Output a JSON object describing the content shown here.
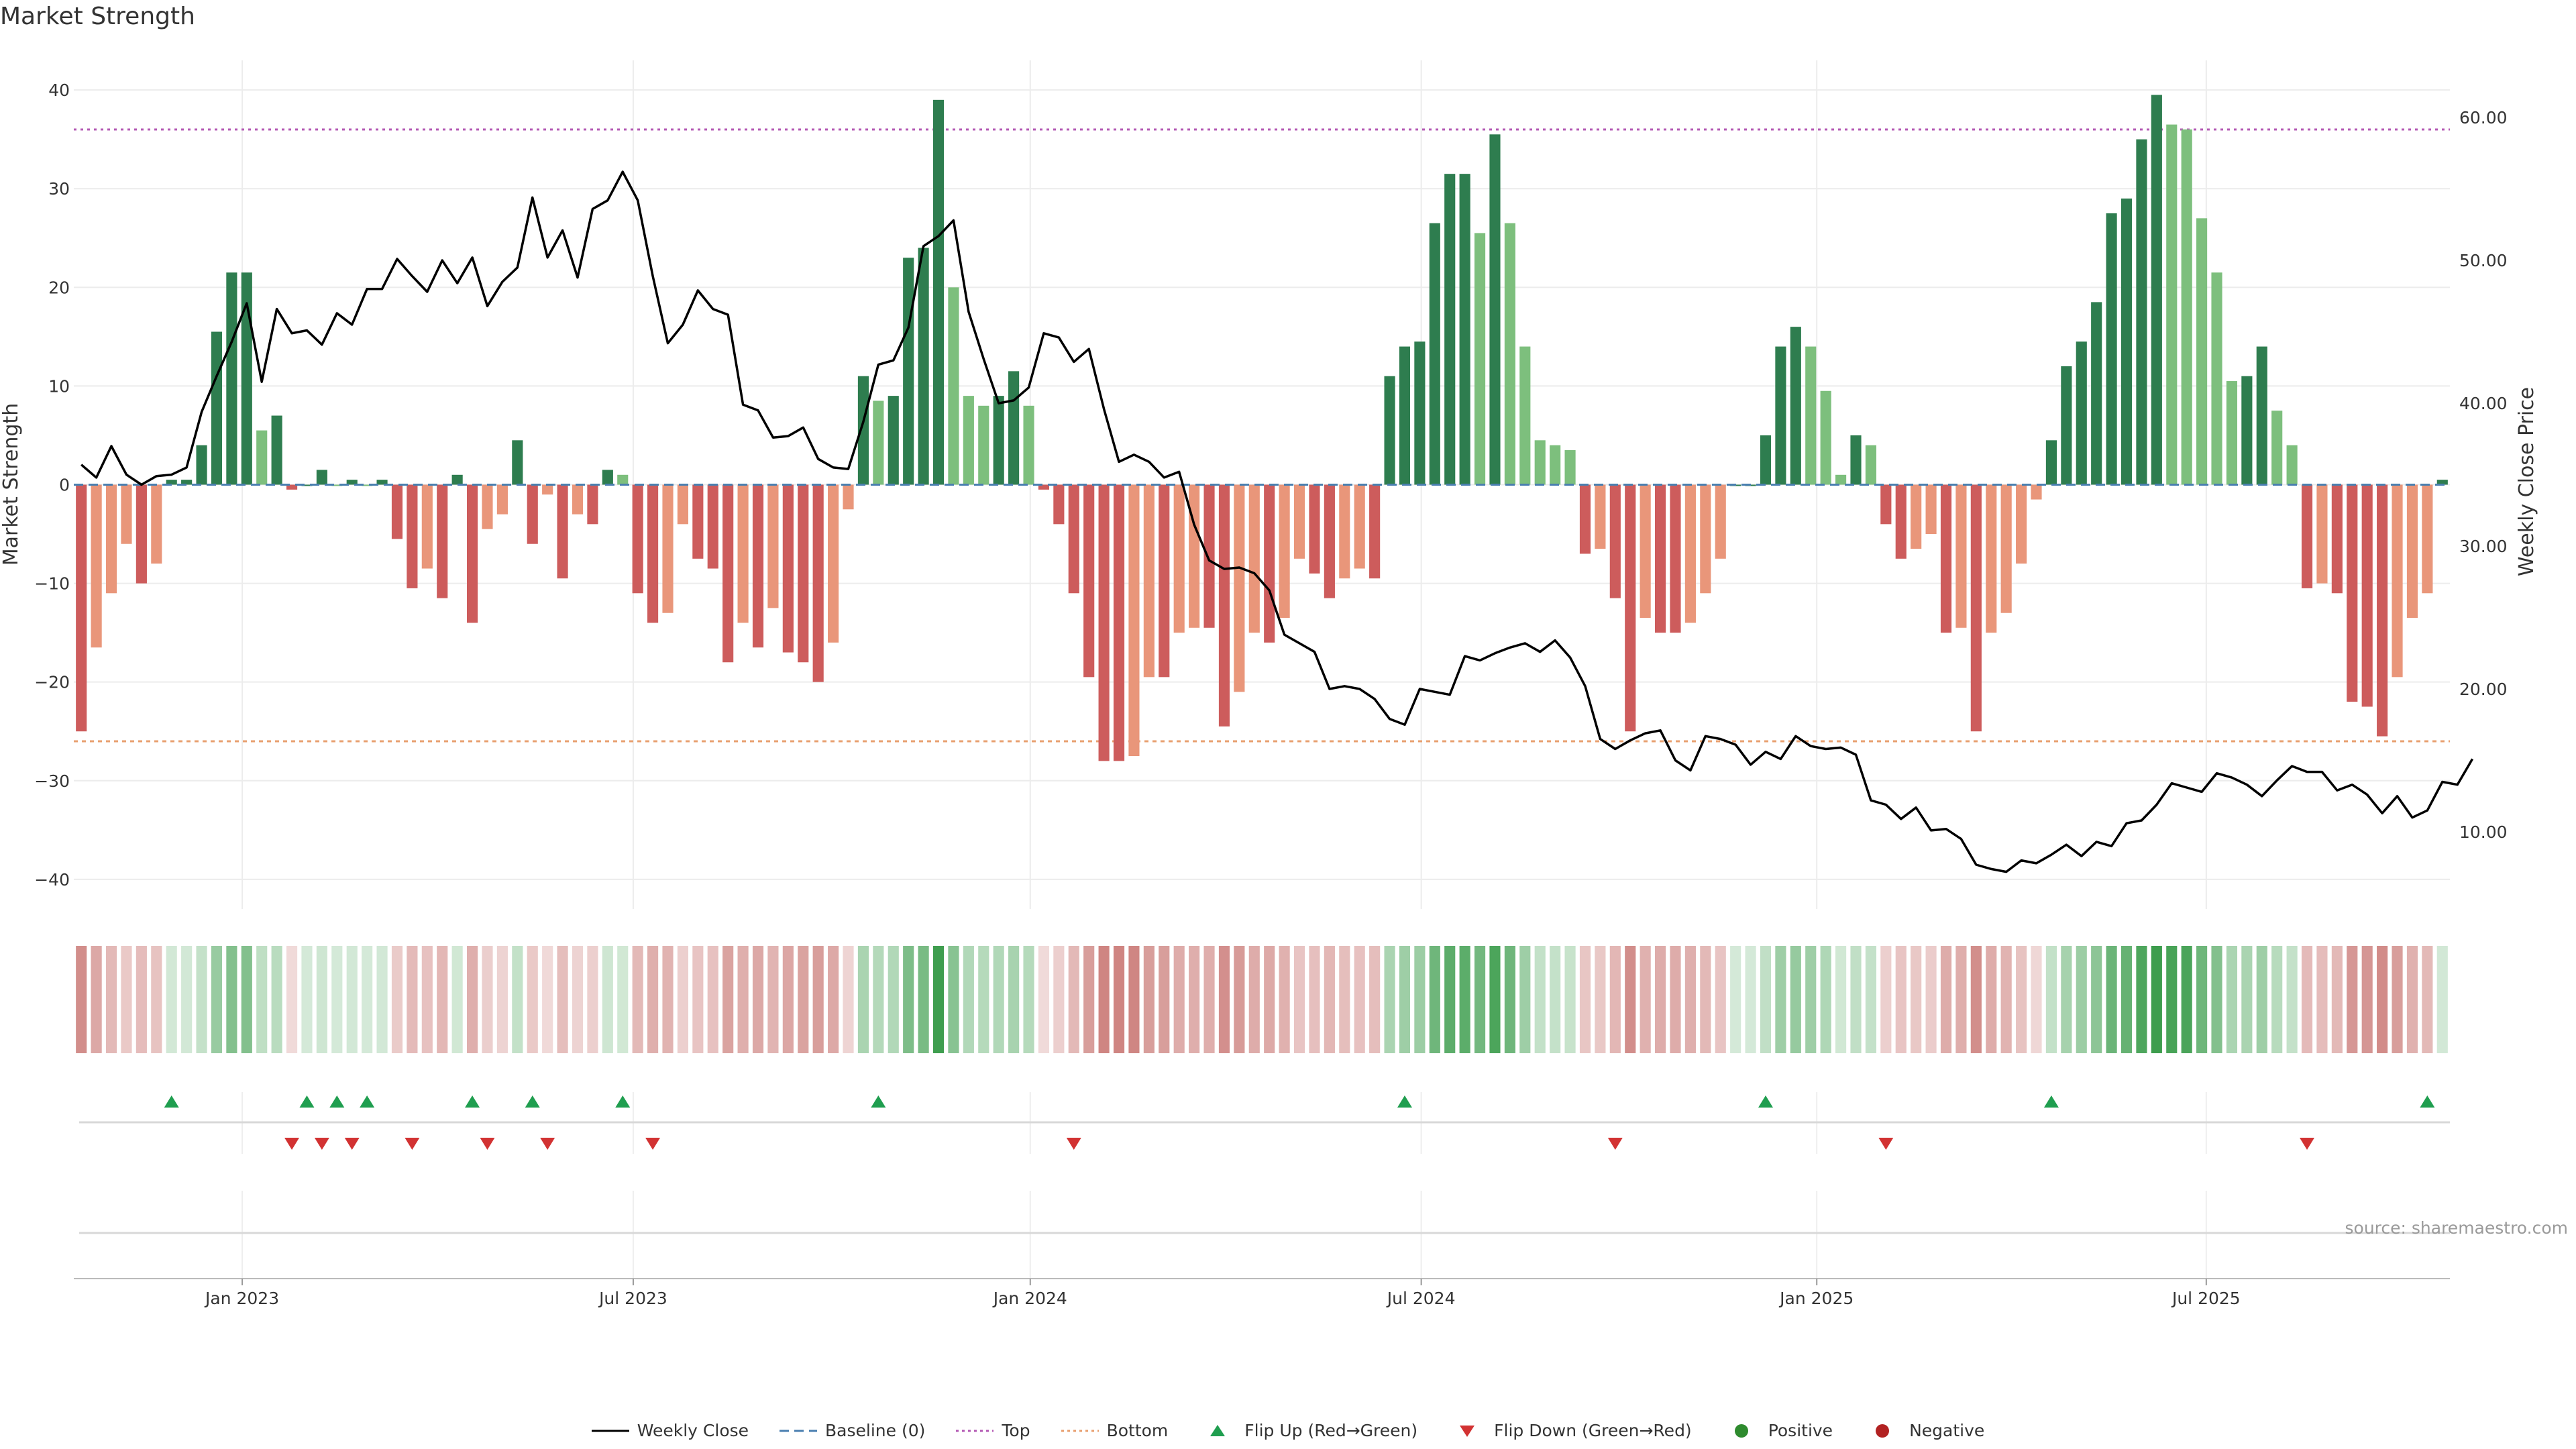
{
  "chart_data": {
    "type": "bar",
    "title": "Market Strength",
    "source": "source: sharemaestro.com",
    "ylabel": "Market Strength",
    "y2label": "Weekly Close Price",
    "ylim": [
      -43,
      43
    ],
    "y2lim": [
      4.6,
      64.0
    ],
    "yticks": [
      40,
      30,
      20,
      10,
      0,
      -10,
      -20,
      -30,
      -40
    ],
    "yticklabels": [
      "40",
      "30",
      "20",
      "10",
      "0",
      "−10",
      "−20",
      "−30",
      "−40"
    ],
    "y2ticks": [
      60,
      50,
      40,
      30,
      20,
      10
    ],
    "y2ticklabels": [
      "60.00",
      "50.00",
      "40.00",
      "30.00",
      "20.00",
      "10.00"
    ],
    "reference_lines": {
      "top": 36,
      "bottom": -26,
      "baseline": 0
    },
    "x_ticks": [
      {
        "label": "Jan 2023",
        "week": 10.7
      },
      {
        "label": "Jul 2023",
        "week": 36.7
      },
      {
        "label": "Jan 2024",
        "week": 63.1
      },
      {
        "label": "Jul 2024",
        "week": 89.1
      },
      {
        "label": "Jan 2025",
        "week": 115.4
      },
      {
        "label": "Jul 2025",
        "week": 141.3
      }
    ],
    "series": [
      {
        "name": "Market Strength",
        "values": [
          -25,
          -16.5,
          -11,
          -6,
          -10,
          -8,
          0.5,
          0.5,
          4,
          15.5,
          21.5,
          21.5,
          5.5,
          7,
          -0.5,
          0,
          1.5,
          0,
          0.5,
          0,
          0.5,
          -5.5,
          -10.5,
          -8.5,
          -11.5,
          1,
          -14,
          -4.5,
          -3,
          4.5,
          -6,
          -1,
          -9.5,
          -3,
          -4,
          1.5,
          1,
          -11,
          -14,
          -13,
          -4,
          -7.5,
          -8.5,
          -18,
          -14,
          -16.5,
          -12.5,
          -17,
          -18,
          -20,
          -16,
          -2.5,
          11,
          8.5,
          9,
          23,
          24,
          39,
          20,
          9,
          8,
          9,
          11.5,
          8,
          -0.5,
          -4,
          -11,
          -19.5,
          -28,
          -28,
          -27.5,
          -19.5,
          -19.5,
          -15,
          -14.5,
          -14.5,
          -24.5,
          -21,
          -15,
          -16,
          -13.5,
          -7.5,
          -9,
          -11.5,
          -9.5,
          -8.5,
          -9.5,
          11,
          14,
          14.5,
          26.5,
          31.5,
          31.5,
          25.5,
          35.5,
          26.5,
          14,
          4.5,
          4,
          3.5,
          -7,
          -6.5,
          -11.5,
          -25,
          -13.5,
          -15,
          -15,
          -14,
          -11,
          -7.5,
          0,
          0,
          5,
          14,
          16,
          14,
          9.5,
          1,
          5,
          4,
          -4,
          -7.5,
          -6.5,
          -5,
          -15,
          -14.5,
          -25,
          -15,
          -13,
          -8,
          -1.5,
          4.5,
          12,
          14.5,
          18.5,
          27.5,
          29,
          35,
          39.5,
          36.5,
          36,
          27,
          21.5,
          10.5,
          11,
          14,
          7.5,
          4,
          -10.5,
          -10,
          -11,
          -22,
          -22.5,
          -25.5,
          -19.5,
          -13.5,
          -11,
          0.5
        ]
      },
      {
        "name": "Weekly Close",
        "values": [
          35.7,
          34.8,
          37.0,
          35.0,
          34.3,
          34.9,
          35.0,
          35.5,
          39.4,
          41.9,
          44.3,
          47.0,
          41.5,
          46.6,
          44.9,
          45.1,
          44.1,
          46.3,
          45.5,
          48.0,
          48.0,
          50.1,
          48.9,
          47.8,
          50.0,
          48.4,
          50.2,
          46.8,
          48.5,
          49.5,
          54.4,
          50.2,
          52.1,
          48.8,
          53.6,
          54.2,
          56.2,
          54.2,
          48.9,
          44.2,
          45.5,
          47.9,
          46.6,
          46.2,
          39.9,
          39.5,
          37.6,
          37.7,
          38.3,
          36.1,
          35.5,
          35.4,
          38.7,
          42.7,
          43.0,
          45.3,
          51.0,
          51.7,
          52.8,
          46.4,
          43.1,
          40.0,
          40.2,
          41.1,
          44.9,
          44.6,
          42.9,
          43.8,
          39.6,
          35.9,
          36.4,
          35.9,
          34.8,
          35.2,
          31.5,
          29.0,
          28.4,
          28.5,
          28.1,
          26.9,
          23.8,
          23.2,
          22.6,
          20.0,
          20.2,
          20.0,
          19.3,
          17.9,
          17.5,
          20.0,
          19.8,
          19.6,
          22.3,
          22.0,
          22.5,
          22.9,
          23.2,
          22.6,
          23.4,
          22.2,
          20.2,
          16.5,
          15.8,
          16.4,
          16.9,
          17.1,
          15.0,
          14.3,
          16.7,
          16.5,
          16.1,
          14.7,
          15.6,
          15.1,
          16.7,
          16.0,
          15.8,
          15.9,
          15.4,
          12.2,
          11.9,
          10.9,
          11.7,
          10.1,
          10.2,
          9.5,
          7.7,
          7.4,
          7.2,
          8.0,
          7.8,
          8.4,
          9.1,
          8.3,
          9.3,
          9.0,
          10.6,
          10.8,
          11.9,
          13.4,
          13.1,
          12.8,
          14.1,
          13.8,
          13.3,
          12.5,
          13.6,
          14.6,
          14.2,
          14.2,
          12.9,
          13.3,
          12.6,
          11.3,
          12.5,
          11.0,
          11.5,
          13.5,
          13.3,
          15.1
        ]
      }
    ],
    "markers": {
      "flip_up_weeks": [
        6,
        15,
        17,
        19,
        26,
        30,
        36,
        53,
        88,
        112,
        131,
        156
      ],
      "flip_down_weeks": [
        14,
        16,
        18,
        22,
        27,
        31,
        38,
        66,
        102,
        120,
        148
      ]
    },
    "legend": [
      {
        "label": "Weekly Close",
        "kind": "line-solid",
        "color": "#000000"
      },
      {
        "label": "Baseline (0)",
        "kind": "line-dashed",
        "color": "#4a7fb0"
      },
      {
        "label": "Top",
        "kind": "line-dotted",
        "color": "#b45ab4"
      },
      {
        "label": "Bottom",
        "kind": "line-dotted",
        "color": "#e8a070"
      },
      {
        "label": "Flip Up (Red→Green)",
        "kind": "triangle-up",
        "color": "#1f9e4f"
      },
      {
        "label": "Flip Down (Green→Red)",
        "kind": "triangle-down",
        "color": "#d23232"
      },
      {
        "label": "Positive",
        "kind": "dot",
        "color": "#2e8b2e"
      },
      {
        "label": "Negative",
        "kind": "dot",
        "color": "#b22222"
      }
    ],
    "colors": {
      "strong_up": "#2e7d4f",
      "weak_up": "#7dbf7d",
      "strong_down": "#cd5c5c",
      "weak_down": "#e9967a",
      "heat_pos": "#3d9d4d",
      "heat_neg": "#c0605c",
      "price_line": "#000000",
      "baseline": "#4a7fb0",
      "top_line": "#b45ab4",
      "bottom_line": "#e8a070",
      "flip_up": "#1f9e4f",
      "flip_down": "#d23232"
    }
  }
}
